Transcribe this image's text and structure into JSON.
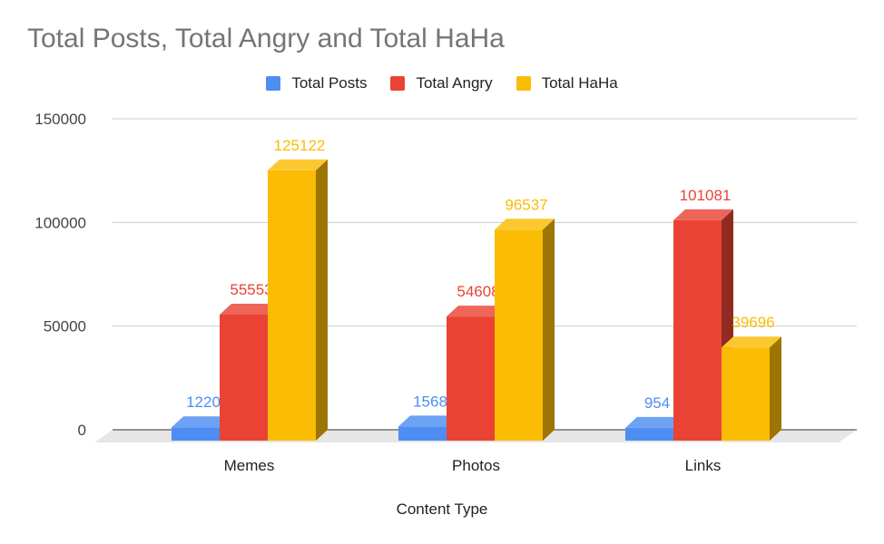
{
  "chart_data": {
    "type": "bar",
    "title": "Total Posts, Total Angry and Total HaHa",
    "xlabel": "Content Type",
    "ylabel": "",
    "categories": [
      "Memes",
      "Photos",
      "Links"
    ],
    "series": [
      {
        "name": "Total Posts",
        "color": "#4e8df2",
        "values": [
          1220,
          1568,
          954
        ]
      },
      {
        "name": "Total Angry",
        "color": "#ea4335",
        "values": [
          55553,
          54608,
          101081
        ]
      },
      {
        "name": "Total HaHa",
        "color": "#fbbc04",
        "values": [
          125122,
          96537,
          39696
        ]
      }
    ],
    "ylim": [
      0,
      150000
    ],
    "yticks": [
      "0",
      "50000",
      "100000",
      "150000"
    ],
    "grid": true,
    "legend_position": "top-center",
    "style": "3d"
  }
}
